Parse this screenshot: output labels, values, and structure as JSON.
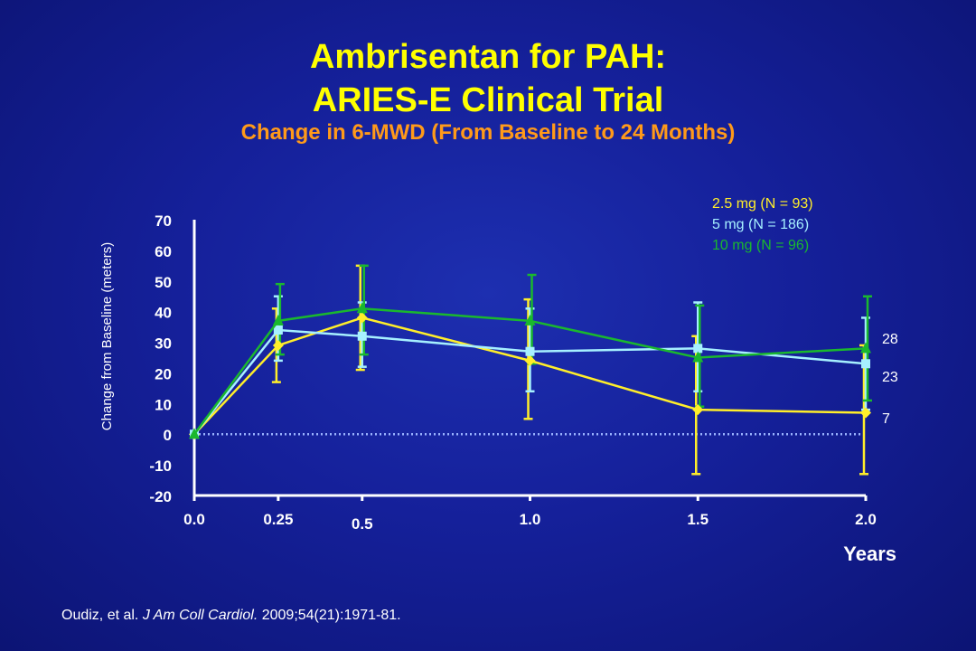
{
  "title": {
    "line1": "Ambrisentan for PAH:",
    "line2": "ARIES-E Clinical Trial",
    "subtitle": "Change in 6-MWD (From Baseline to 24 Months)"
  },
  "footer": {
    "authors": "Oudiz, et al.",
    "journal": "J Am Coll Cardiol.",
    "citation": "2009;54(21):1971-81."
  },
  "colors": {
    "series_2_5mg": "#ffee2a",
    "series_5mg": "#a6f0ff",
    "series_10mg": "#1ab82e",
    "axis": "#ffffff",
    "baseline": "#9ab3ff",
    "title": "#ffff00",
    "subtitle": "#ff9a1a"
  },
  "chart_data": {
    "type": "line",
    "xlabel": "Years",
    "ylabel": "Change from Baseline (meters)",
    "x": [
      0,
      0.25,
      0.5,
      1.0,
      1.5,
      2.0
    ],
    "x_tick_labels": [
      "0.0",
      "0.25",
      "0.5",
      "1.0",
      "1.5",
      "2.0"
    ],
    "y_ticks": [
      -20,
      -10,
      0,
      10,
      20,
      30,
      40,
      50,
      60,
      70
    ],
    "xlim": [
      0,
      2.0
    ],
    "ylim": [
      -20,
      70
    ],
    "grid": false,
    "legend_position": "top-right",
    "reference_line": 0,
    "series": [
      {
        "name": "2.5 mg (N = 93)",
        "color": "#ffee2a",
        "marker": "diamond",
        "values": [
          0,
          29,
          38,
          24,
          8,
          7
        ],
        "err_upper": [
          0,
          41,
          55,
          44,
          32,
          29
        ],
        "err_lower": [
          0,
          17,
          21,
          5,
          -13,
          -13
        ],
        "end_label": "7"
      },
      {
        "name": "5 mg (N = 186)",
        "color": "#a6f0ff",
        "marker": "square",
        "values": [
          0,
          34,
          32,
          27,
          28,
          23
        ],
        "err_upper": [
          0,
          45,
          43,
          41,
          43,
          38
        ],
        "err_lower": [
          0,
          24,
          22,
          14,
          14,
          8
        ],
        "end_label": "23"
      },
      {
        "name": "10 mg (N = 96)",
        "color": "#1ab82e",
        "marker": "triangle",
        "values": [
          0,
          37,
          41,
          37,
          25,
          28
        ],
        "err_upper": [
          0,
          49,
          55,
          52,
          42,
          45
        ],
        "err_lower": [
          0,
          26,
          26,
          23,
          9,
          11
        ],
        "end_label": "28"
      }
    ]
  }
}
